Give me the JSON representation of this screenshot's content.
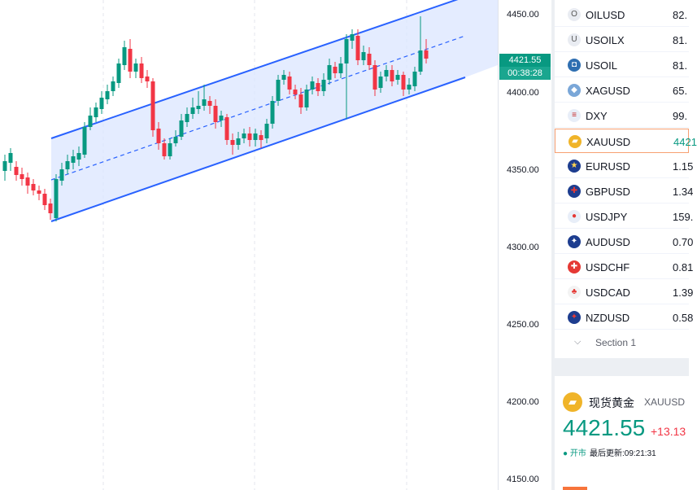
{
  "price_axis": {
    "ticks": [
      "4450.00",
      "4400.00",
      "4350.00",
      "4300.00",
      "4250.00",
      "4200.00",
      "4150.00"
    ],
    "current_price": "4421.55",
    "countdown": "00:38:28"
  },
  "watchlist": {
    "items": [
      {
        "symbol": "OILUSD",
        "value": "82.",
        "icon": "O"
      },
      {
        "symbol": "USOILX",
        "value": "81.",
        "icon": "U"
      },
      {
        "symbol": "USOIL",
        "value": "81.",
        "icon": "oil-icon"
      },
      {
        "symbol": "XAGUSD",
        "value": "65.",
        "icon": "silver-icon"
      },
      {
        "symbol": "DXY",
        "value": "99.",
        "icon": "us-flag-icon"
      },
      {
        "symbol": "XAUUSD",
        "value": "4421",
        "icon": "gold-icon",
        "active": true
      },
      {
        "symbol": "EURUSD",
        "value": "1.15",
        "icon": "eu-us-flag-icon"
      },
      {
        "symbol": "GBPUSD",
        "value": "1.34",
        "icon": "gb-us-flag-icon"
      },
      {
        "symbol": "USDJPY",
        "value": "159.",
        "icon": "us-jp-flag-icon"
      },
      {
        "symbol": "AUDUSD",
        "value": "0.70",
        "icon": "au-us-flag-icon"
      },
      {
        "symbol": "USDCHF",
        "value": "0.81",
        "icon": "us-ch-flag-icon"
      },
      {
        "symbol": "USDCAD",
        "value": "1.39",
        "icon": "us-ca-flag-icon"
      },
      {
        "symbol": "NZDUSD",
        "value": "0.58",
        "icon": "nz-us-flag-icon"
      }
    ],
    "section_label": "Section 1"
  },
  "detail": {
    "name": "现货黄金",
    "code": "XAUUSD",
    "price": "4421.55",
    "change": "+13.13",
    "status": "● 开市",
    "updated": "最后更新:09:21:31"
  },
  "colors": {
    "up": "#089981",
    "down": "#f23645",
    "channel_line": "#2962ff",
    "channel_fill": "#dbe5ff",
    "active_border": "#f7a072"
  }
}
